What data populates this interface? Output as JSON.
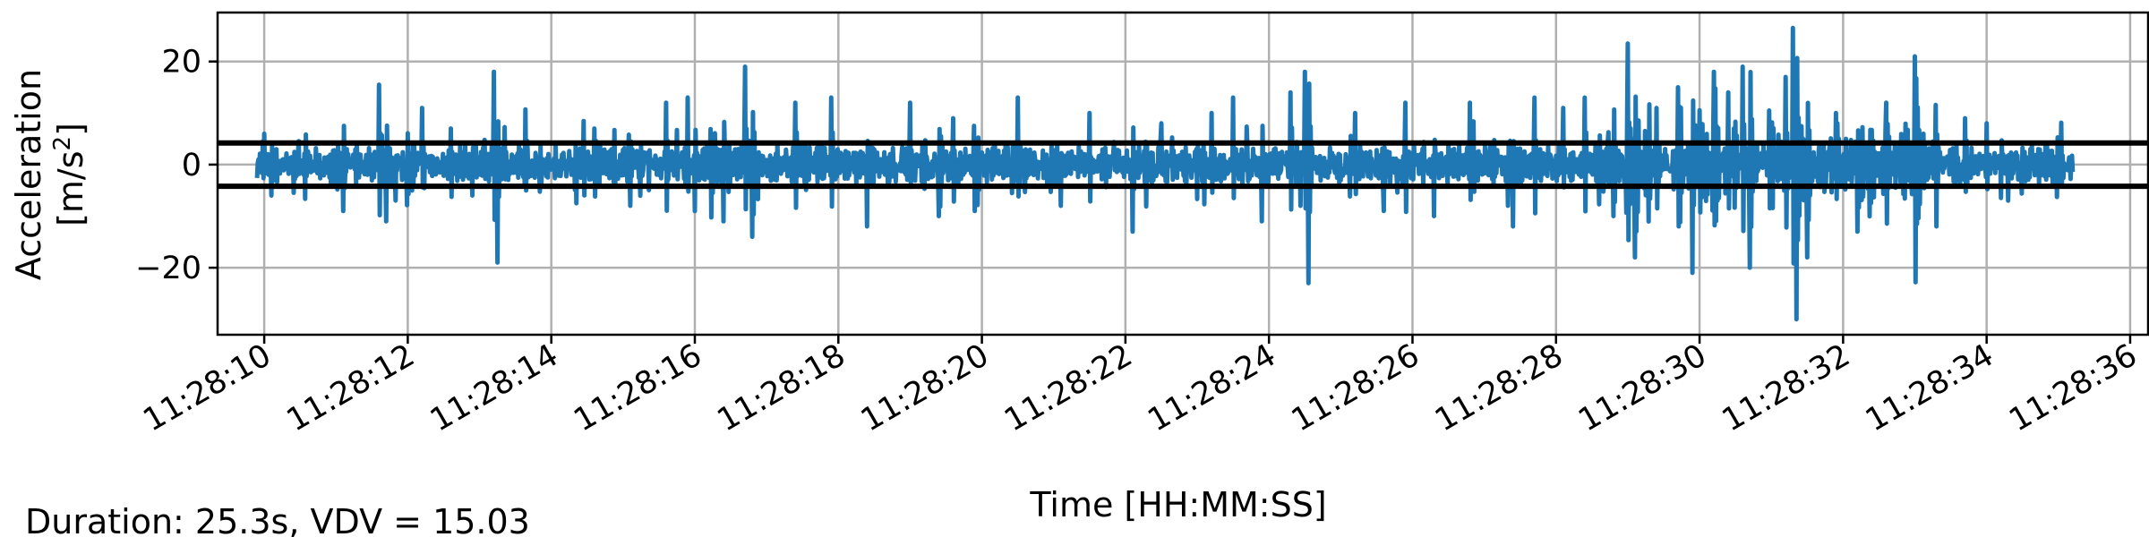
{
  "chart_data": {
    "type": "line",
    "title": "",
    "xlabel": "Time [HH:MM:SS]",
    "ylabel_line1": "Acceleration",
    "ylabel_line2": "[m/s",
    "ylabel_sup": "2",
    "ylabel_close": "]",
    "x_start": "11:28:09.9",
    "x_end": "11:28:35.2",
    "xlim": [
      "11:28:09.35",
      "11:28:36.25"
    ],
    "ylim": [
      -33,
      29.5
    ],
    "x_ticks": [
      "11:28:10",
      "11:28:12",
      "11:28:14",
      "11:28:16",
      "11:28:18",
      "11:28:20",
      "11:28:22",
      "11:28:24",
      "11:28:26",
      "11:28:28",
      "11:28:30",
      "11:28:32",
      "11:28:34",
      "11:28:36"
    ],
    "y_ticks": [
      20,
      0,
      -20
    ],
    "y_tick_labels": [
      "20",
      "0",
      "−20"
    ],
    "grid": true,
    "thresholds": [
      4.2,
      -4.2
    ],
    "series_color": "#1f77b4",
    "threshold_color": "#000000",
    "peaks": [
      {
        "t": 10.0,
        "v": 6
      },
      {
        "t": 10.1,
        "v": -6
      },
      {
        "t": 11.1,
        "v": -9
      },
      {
        "t": 11.6,
        "v": 15.5
      },
      {
        "t": 11.7,
        "v": -11
      },
      {
        "t": 12.2,
        "v": 11
      },
      {
        "t": 12.6,
        "v": 7
      },
      {
        "t": 12.9,
        "v": -6
      },
      {
        "t": 13.2,
        "v": 18
      },
      {
        "t": 13.25,
        "v": -19
      },
      {
        "t": 14.6,
        "v": 7
      },
      {
        "t": 15.1,
        "v": -8
      },
      {
        "t": 15.6,
        "v": 12
      },
      {
        "t": 15.9,
        "v": 13
      },
      {
        "t": 16.0,
        "v": -9
      },
      {
        "t": 16.4,
        "v": -11
      },
      {
        "t": 16.7,
        "v": 19
      },
      {
        "t": 16.8,
        "v": -14
      },
      {
        "t": 17.4,
        "v": 12
      },
      {
        "t": 17.9,
        "v": 13
      },
      {
        "t": 18.4,
        "v": -12
      },
      {
        "t": 19.0,
        "v": 12
      },
      {
        "t": 19.4,
        "v": -10
      },
      {
        "t": 19.6,
        "v": 9
      },
      {
        "t": 19.9,
        "v": -9
      },
      {
        "t": 20.5,
        "v": 13
      },
      {
        "t": 21.1,
        "v": -8
      },
      {
        "t": 21.5,
        "v": 10
      },
      {
        "t": 22.1,
        "v": -13
      },
      {
        "t": 22.5,
        "v": 8
      },
      {
        "t": 23.2,
        "v": 10
      },
      {
        "t": 23.5,
        "v": 13
      },
      {
        "t": 23.9,
        "v": -11
      },
      {
        "t": 24.3,
        "v": 14
      },
      {
        "t": 24.5,
        "v": 18
      },
      {
        "t": 24.55,
        "v": -23
      },
      {
        "t": 25.2,
        "v": 10
      },
      {
        "t": 25.6,
        "v": -9
      },
      {
        "t": 25.9,
        "v": 12
      },
      {
        "t": 26.3,
        "v": -10
      },
      {
        "t": 26.8,
        "v": 12
      },
      {
        "t": 27.4,
        "v": -12
      },
      {
        "t": 27.7,
        "v": 13
      },
      {
        "t": 28.1,
        "v": 11
      },
      {
        "t": 28.4,
        "v": 13
      },
      {
        "t": 28.8,
        "v": -10
      },
      {
        "t": 29.0,
        "v": 23.5
      },
      {
        "t": 29.1,
        "v": -18
      },
      {
        "t": 29.4,
        "v": 11
      },
      {
        "t": 29.7,
        "v": 15
      },
      {
        "t": 29.9,
        "v": -21
      },
      {
        "t": 30.2,
        "v": 18
      },
      {
        "t": 30.4,
        "v": 14
      },
      {
        "t": 30.6,
        "v": 19
      },
      {
        "t": 30.7,
        "v": -20
      },
      {
        "t": 31.2,
        "v": 17
      },
      {
        "t": 31.3,
        "v": 26.5
      },
      {
        "t": 31.35,
        "v": -30
      },
      {
        "t": 31.5,
        "v": -18
      },
      {
        "t": 31.9,
        "v": 10
      },
      {
        "t": 32.2,
        "v": -13
      },
      {
        "t": 32.6,
        "v": 12
      },
      {
        "t": 33.0,
        "v": -20
      },
      {
        "t": 33.0,
        "v": 21
      },
      {
        "t": 33.3,
        "v": -12
      },
      {
        "t": 33.7,
        "v": 9
      },
      {
        "t": 34.0,
        "v": 8
      },
      {
        "t": 34.3,
        "v": -7
      }
    ]
  },
  "footer_note": "Duration: 25.3s, VDV = 15.03"
}
